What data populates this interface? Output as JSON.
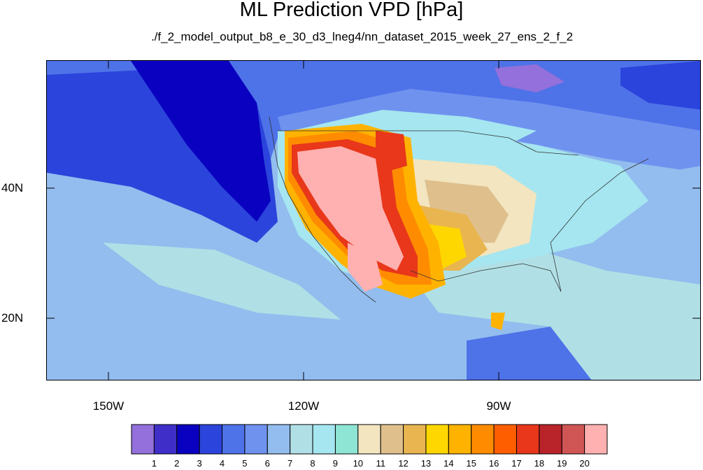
{
  "title": "ML Prediction VPD [hPa]",
  "subtitle": "./f_2_model_output_b8_e_30_d3_lneg4/nn_dataset_2015_week_27_ens_2_f_2",
  "map": {
    "lat_labels": [
      "40N",
      "20N"
    ],
    "lon_labels": [
      "150W",
      "120W",
      "90W"
    ]
  },
  "colorbar": {
    "labels": [
      "1",
      "2",
      "3",
      "4",
      "5",
      "6",
      "7",
      "8",
      "9",
      "10",
      "11",
      "12",
      "13",
      "14",
      "15",
      "16",
      "17",
      "18",
      "19",
      "20"
    ],
    "colors": [
      "#9370db",
      "#3f2fc8",
      "#0a00c0",
      "#2b44db",
      "#4e72e8",
      "#6f92ef",
      "#92bdee",
      "#b0e0e6",
      "#a5e6f0",
      "#8ee5d4",
      "#f2e5c0",
      "#dfc08c",
      "#e8b550",
      "#ffd700",
      "#ffb300",
      "#ff8c00",
      "#ff5e00",
      "#e8371a",
      "#b8242a",
      "#d05555",
      "#ffb0b0"
    ]
  }
}
